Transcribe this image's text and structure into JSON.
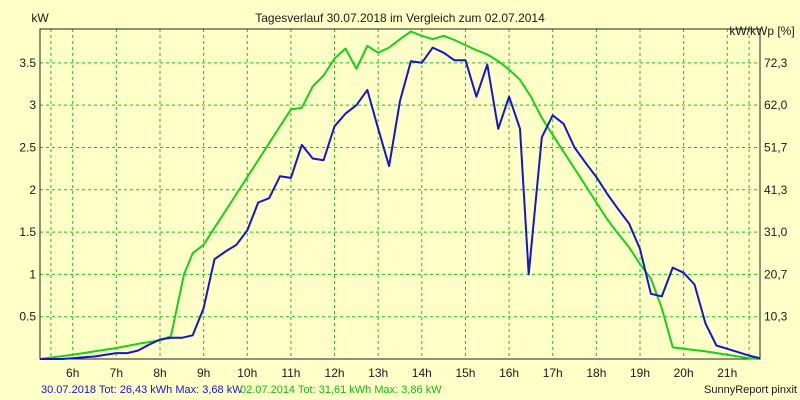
{
  "chart_data": {
    "type": "line",
    "title": "Tagesverlauf 30.07.2018 im Vergleich zum 02.07.2014",
    "ylabel_left": "kW",
    "ylabel_right": "kW/kWp [%]",
    "x_ticks": [
      "6h",
      "7h",
      "8h",
      "9h",
      "10h",
      "11h",
      "12h",
      "13h",
      "14h",
      "15h",
      "16h",
      "17h",
      "18h",
      "19h",
      "20h",
      "21h"
    ],
    "y_ticks_left": [
      "0.5",
      "1",
      "1.5",
      "2",
      "2.5",
      "3",
      "3.5"
    ],
    "y_ticks_right": [
      "10,3",
      "20,7",
      "31,0",
      "41,3",
      "51,7",
      "62,0",
      "72,3"
    ],
    "xlim": [
      5.25,
      21.75
    ],
    "ylim": [
      0,
      3.9
    ],
    "grid": true,
    "series": [
      {
        "legend": "30.07.2018 Tot: 26,43 kWh Max: 3,68 kW",
        "color": "#1515d0",
        "points": [
          [
            5.25,
            0
          ],
          [
            5.75,
            0
          ],
          [
            6.0,
            0.01
          ],
          [
            6.25,
            0.02
          ],
          [
            6.5,
            0.03
          ],
          [
            6.75,
            0.05
          ],
          [
            7.0,
            0.07
          ],
          [
            7.25,
            0.07
          ],
          [
            7.5,
            0.1
          ],
          [
            7.75,
            0.17
          ],
          [
            8.0,
            0.23
          ],
          [
            8.25,
            0.25
          ],
          [
            8.5,
            0.25
          ],
          [
            8.75,
            0.28
          ],
          [
            9.0,
            0.6
          ],
          [
            9.25,
            1.18
          ],
          [
            9.5,
            1.27
          ],
          [
            9.75,
            1.35
          ],
          [
            10.0,
            1.52
          ],
          [
            10.25,
            1.85
          ],
          [
            10.5,
            1.9
          ],
          [
            10.75,
            2.16
          ],
          [
            11.0,
            2.14
          ],
          [
            11.25,
            2.53
          ],
          [
            11.5,
            2.37
          ],
          [
            11.75,
            2.35
          ],
          [
            12.0,
            2.75
          ],
          [
            12.25,
            2.9
          ],
          [
            12.5,
            3.0
          ],
          [
            12.75,
            3.18
          ],
          [
            13.0,
            2.72
          ],
          [
            13.25,
            2.28
          ],
          [
            13.5,
            3.05
          ],
          [
            13.75,
            3.52
          ],
          [
            14.0,
            3.5
          ],
          [
            14.25,
            3.68
          ],
          [
            14.5,
            3.62
          ],
          [
            14.75,
            3.53
          ],
          [
            15.0,
            3.53
          ],
          [
            15.25,
            3.1
          ],
          [
            15.5,
            3.48
          ],
          [
            15.75,
            2.72
          ],
          [
            16.0,
            3.1
          ],
          [
            16.25,
            2.72
          ],
          [
            16.45,
            1.0
          ],
          [
            16.75,
            2.62
          ],
          [
            17.0,
            2.88
          ],
          [
            17.25,
            2.78
          ],
          [
            17.5,
            2.5
          ],
          [
            17.75,
            2.32
          ],
          [
            18.0,
            2.15
          ],
          [
            18.25,
            1.95
          ],
          [
            18.5,
            1.77
          ],
          [
            18.75,
            1.6
          ],
          [
            19.0,
            1.3
          ],
          [
            19.25,
            0.77
          ],
          [
            19.5,
            0.74
          ],
          [
            19.75,
            1.08
          ],
          [
            20.0,
            1.02
          ],
          [
            20.25,
            0.88
          ],
          [
            20.5,
            0.42
          ],
          [
            20.75,
            0.16
          ],
          [
            21.0,
            0.12
          ],
          [
            21.25,
            0.08
          ],
          [
            21.5,
            0.04
          ],
          [
            21.75,
            0.01
          ]
        ]
      },
      {
        "legend": "02.07.2014 Tot: 31,61 kWh Max: 3,86 kW",
        "color": "#18d018",
        "points": [
          [
            5.25,
            0
          ],
          [
            6.0,
            0.05
          ],
          [
            6.5,
            0.09
          ],
          [
            7.0,
            0.13
          ],
          [
            7.5,
            0.18
          ],
          [
            8.0,
            0.22
          ],
          [
            8.25,
            0.27
          ],
          [
            8.55,
            1.0
          ],
          [
            8.75,
            1.25
          ],
          [
            9.0,
            1.35
          ],
          [
            9.25,
            1.55
          ],
          [
            9.5,
            1.75
          ],
          [
            9.75,
            1.95
          ],
          [
            10.0,
            2.15
          ],
          [
            10.25,
            2.35
          ],
          [
            10.5,
            2.55
          ],
          [
            10.75,
            2.75
          ],
          [
            11.0,
            2.95
          ],
          [
            11.25,
            2.97
          ],
          [
            11.5,
            3.22
          ],
          [
            11.75,
            3.35
          ],
          [
            12.0,
            3.55
          ],
          [
            12.25,
            3.67
          ],
          [
            12.5,
            3.43
          ],
          [
            12.75,
            3.7
          ],
          [
            13.0,
            3.62
          ],
          [
            13.25,
            3.68
          ],
          [
            13.5,
            3.78
          ],
          [
            13.75,
            3.87
          ],
          [
            14.0,
            3.82
          ],
          [
            14.25,
            3.78
          ],
          [
            14.5,
            3.82
          ],
          [
            14.75,
            3.77
          ],
          [
            15.0,
            3.71
          ],
          [
            15.25,
            3.65
          ],
          [
            15.5,
            3.6
          ],
          [
            15.75,
            3.52
          ],
          [
            16.0,
            3.42
          ],
          [
            16.25,
            3.3
          ],
          [
            16.5,
            3.1
          ],
          [
            16.75,
            2.85
          ],
          [
            17.0,
            2.65
          ],
          [
            17.25,
            2.45
          ],
          [
            17.5,
            2.25
          ],
          [
            17.75,
            2.05
          ],
          [
            18.0,
            1.85
          ],
          [
            18.25,
            1.65
          ],
          [
            18.5,
            1.48
          ],
          [
            18.75,
            1.32
          ],
          [
            19.0,
            1.12
          ],
          [
            19.25,
            0.95
          ],
          [
            19.5,
            0.6
          ],
          [
            19.75,
            0.14
          ],
          [
            20.0,
            0.12
          ],
          [
            20.5,
            0.09
          ],
          [
            21.0,
            0.05
          ],
          [
            21.25,
            0.03
          ],
          [
            21.5,
            0.01
          ],
          [
            21.75,
            0
          ]
        ]
      }
    ],
    "credit": "SunnyReport pinxit"
  }
}
